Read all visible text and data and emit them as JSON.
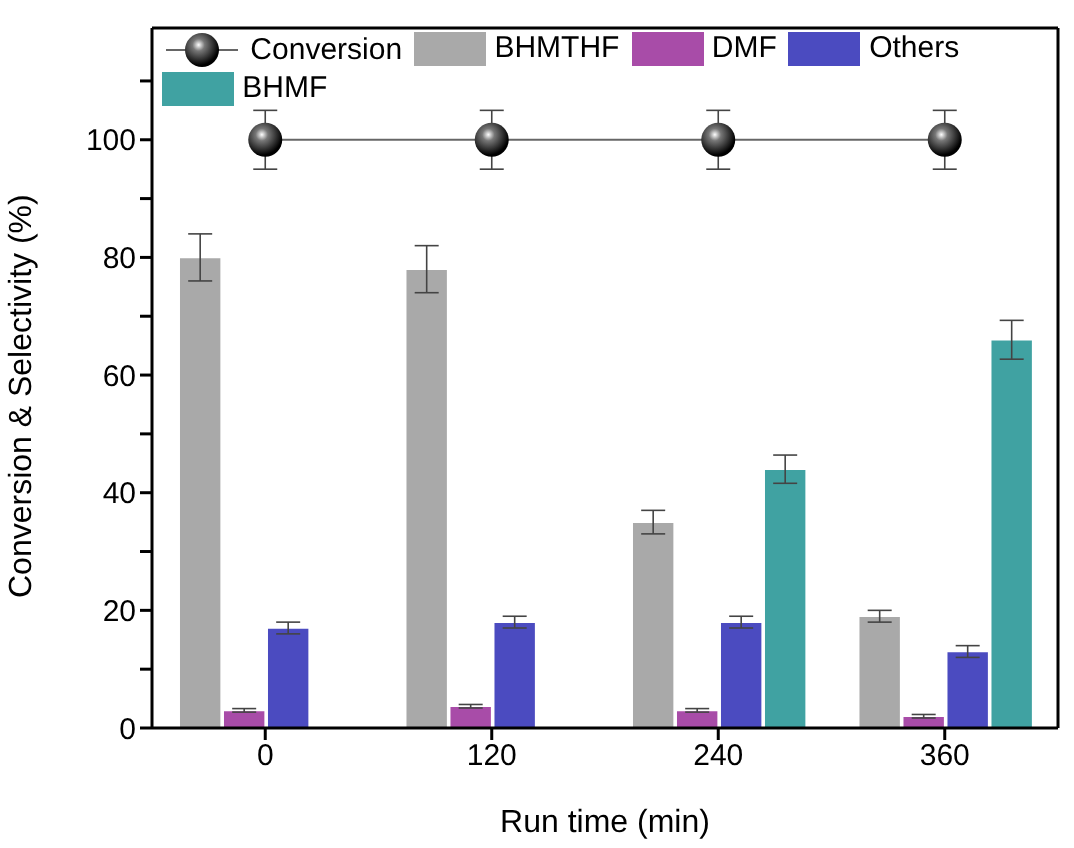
{
  "chart_data": {
    "type": "bar",
    "xlabel": "Run time (min)",
    "ylabel": "Conversion & Selectivity (%)",
    "categories": [
      "0",
      "120",
      "240",
      "360"
    ],
    "series": [
      {
        "name": "Conversion",
        "type": "line",
        "color": "#000000",
        "values": [
          100,
          100,
          100,
          100
        ],
        "errors": [
          5,
          5,
          5,
          5
        ]
      },
      {
        "name": "BHMTHF",
        "color": "#a9a9a9",
        "values": [
          80,
          78,
          35,
          19
        ],
        "errors": [
          4,
          4,
          2,
          1
        ]
      },
      {
        "name": "DMF",
        "color": "#a84ca8",
        "values": [
          3,
          3.7,
          3,
          2
        ],
        "errors": [
          0.3,
          0.3,
          0.3,
          0.3
        ]
      },
      {
        "name": "Others",
        "color": "#4b4bc0",
        "values": [
          17,
          18,
          18,
          13
        ],
        "errors": [
          1,
          1,
          1,
          1
        ]
      },
      {
        "name": "BHMF",
        "color": "#40a2a2",
        "values": [
          null,
          null,
          44,
          66
        ],
        "errors": [
          null,
          null,
          2.4,
          3.3
        ]
      }
    ],
    "ylim": [
      0,
      119
    ],
    "yticks": [
      0,
      {
        "value": 10,
        "label": null
      },
      20,
      {
        "value": 30,
        "label": null
      },
      40,
      {
        "value": 50,
        "label": null
      },
      60,
      {
        "value": 70,
        "label": null
      },
      80,
      {
        "value": 90,
        "label": null
      },
      100,
      {
        "value": 110,
        "label": null
      }
    ],
    "marker": "circle",
    "legend": "top left"
  }
}
